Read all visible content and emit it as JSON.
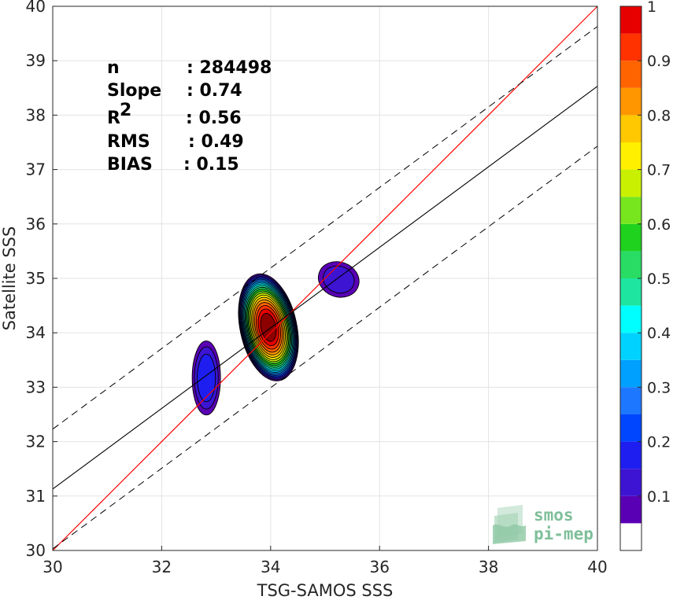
{
  "chart_data": {
    "type": "contour",
    "xlabel": "TSG-SAMOS SSS",
    "ylabel": "Satellite SSS",
    "xlim": [
      30,
      40
    ],
    "ylim": [
      30,
      40
    ],
    "x_ticks": [
      "30",
      "32",
      "34",
      "36",
      "38",
      "40"
    ],
    "y_ticks": [
      "30",
      "31",
      "32",
      "33",
      "34",
      "35",
      "36",
      "37",
      "38",
      "39",
      "40"
    ],
    "grid": true,
    "stats": [
      {
        "label": "n",
        "value": ": 284498"
      },
      {
        "label": "Slope",
        "value": ": 0.74"
      },
      {
        "label": "R",
        "sup": "2",
        "value": ": 0.56"
      },
      {
        "label": "RMS",
        "value": ": 0.49"
      },
      {
        "label": "BIAS",
        "value": ": 0.15"
      }
    ],
    "lines": {
      "identity": {
        "color": "#ff0000",
        "points": [
          [
            30,
            30
          ],
          [
            40,
            40
          ]
        ]
      },
      "regression": {
        "color": "#000000",
        "slope": 0.74,
        "intercept": 8.93
      },
      "regression_band": {
        "offset": 1.1,
        "style": "dashed"
      }
    },
    "density_clusters": [
      {
        "name": "main",
        "cx": 33.96,
        "cy": 34.1,
        "rx": 0.52,
        "ry": 1.0,
        "tilt_deg": -12,
        "peak": 1.0
      },
      {
        "name": "left",
        "cx": 32.82,
        "cy": 33.17,
        "rx": 0.26,
        "ry": 0.68,
        "tilt_deg": 0,
        "peak": 0.15
      },
      {
        "name": "upper-right",
        "cx": 35.25,
        "cy": 34.98,
        "rx": 0.38,
        "ry": 0.32,
        "tilt_deg": 20,
        "peak": 0.1
      }
    ],
    "colorbar": {
      "ticks": [
        "0.1",
        "0.2",
        "0.3",
        "0.4",
        "0.5",
        "0.6",
        "0.7",
        "0.8",
        "0.9",
        "1"
      ],
      "levels": [
        0,
        0.05,
        0.1,
        0.15,
        0.2,
        0.25,
        0.3,
        0.35,
        0.4,
        0.45,
        0.5,
        0.55,
        0.6,
        0.65,
        0.7,
        0.75,
        0.8,
        0.85,
        0.9,
        0.95,
        1.0
      ],
      "colors": [
        "#ffffff",
        "#5a00b4",
        "#3c14d2",
        "#1e1ef0",
        "#0046ff",
        "#1e78ff",
        "#00a0ff",
        "#00d2ff",
        "#00ffff",
        "#1ee6a0",
        "#28dc64",
        "#1ed21e",
        "#78e61e",
        "#c8f000",
        "#fff000",
        "#ffc800",
        "#ff9600",
        "#ff6400",
        "#ff3200",
        "#e60000",
        "#8c0000"
      ]
    }
  },
  "logo": {
    "line1": "smos",
    "line2": "pi-mep"
  }
}
